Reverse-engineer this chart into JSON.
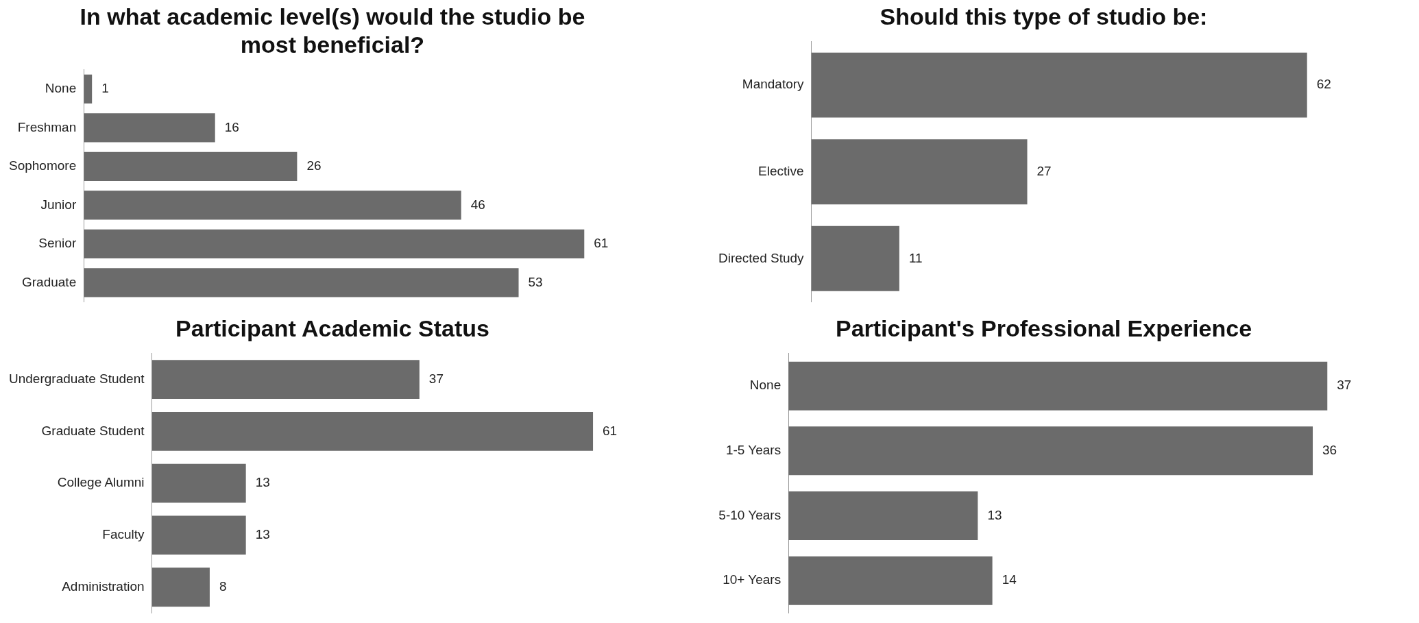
{
  "chart_data": [
    {
      "type": "bar",
      "orientation": "horizontal",
      "title": "In what academic level(s) would the studio be most beneficial?",
      "categories": [
        "None",
        "Freshman",
        "Sophomore",
        "Junior",
        "Senior",
        "Graduate"
      ],
      "values": [
        1,
        16,
        26,
        46,
        61,
        53
      ],
      "color": "#6b6b6b",
      "data_labels": true,
      "grid": false,
      "legend": false,
      "tick_labels": "y"
    },
    {
      "type": "bar",
      "orientation": "horizontal",
      "title": "Should this type of studio be:",
      "categories": [
        "Mandatory",
        "Elective",
        "Directed Study"
      ],
      "values": [
        62,
        27,
        11
      ],
      "color": "#6b6b6b",
      "data_labels": true,
      "grid": false,
      "legend": false,
      "tick_labels": "y"
    },
    {
      "type": "bar",
      "orientation": "horizontal",
      "title": "Participant Academic Status",
      "categories": [
        "Undergraduate Student",
        "Graduate Student",
        "College Alumni",
        "Faculty",
        "Administration"
      ],
      "values": [
        37,
        61,
        13,
        13,
        8
      ],
      "color": "#6b6b6b",
      "data_labels": true,
      "grid": false,
      "legend": false,
      "tick_labels": "y"
    },
    {
      "type": "bar",
      "orientation": "horizontal",
      "title": "Participant's Professional Experience",
      "categories": [
        "None",
        "1-5 Years",
        "5-10 Years",
        "10+ Years"
      ],
      "values": [
        37,
        36,
        13,
        14
      ],
      "color": "#6b6b6b",
      "data_labels": true,
      "grid": false,
      "legend": false,
      "tick_labels": "y"
    }
  ]
}
